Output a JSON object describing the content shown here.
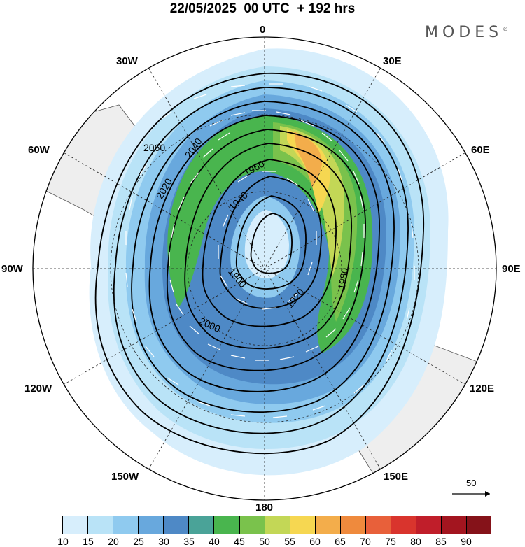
{
  "title": "22/05/2025  00 UTC  + 192 hrs",
  "brand": "MODES",
  "brand_mark": "©",
  "longitude_labels": {
    "top": "0",
    "top_right": "30E",
    "upper_right": "60E",
    "right": "90E",
    "lower_right": "120E",
    "bottom_right": "150E",
    "bottom": "180",
    "bottom_left": "150W",
    "lower_left": "120W",
    "left": "90W",
    "upper_left": "60W",
    "top_left": "30W"
  },
  "contour_labels": [
    "2060",
    "2040",
    "2020",
    "2000",
    "1980",
    "1960",
    "1940",
    "1920",
    "1900"
  ],
  "reference_vector": "50",
  "colorbar": {
    "ticks": [
      "10",
      "15",
      "20",
      "25",
      "30",
      "35",
      "40",
      "45",
      "50",
      "55",
      "60",
      "65",
      "70",
      "75",
      "80",
      "85",
      "90"
    ],
    "colors": [
      "#ffffff",
      "#d7eefc",
      "#b9e3f7",
      "#8fcaef",
      "#68a8dd",
      "#4e89c6",
      "#4aa398",
      "#49b54e",
      "#7ac24c",
      "#c3d756",
      "#f6d751",
      "#f3ad4b",
      "#ef8a3d",
      "#e8603a",
      "#d9342d",
      "#c01e2a",
      "#a3151f",
      "#851219"
    ]
  }
}
